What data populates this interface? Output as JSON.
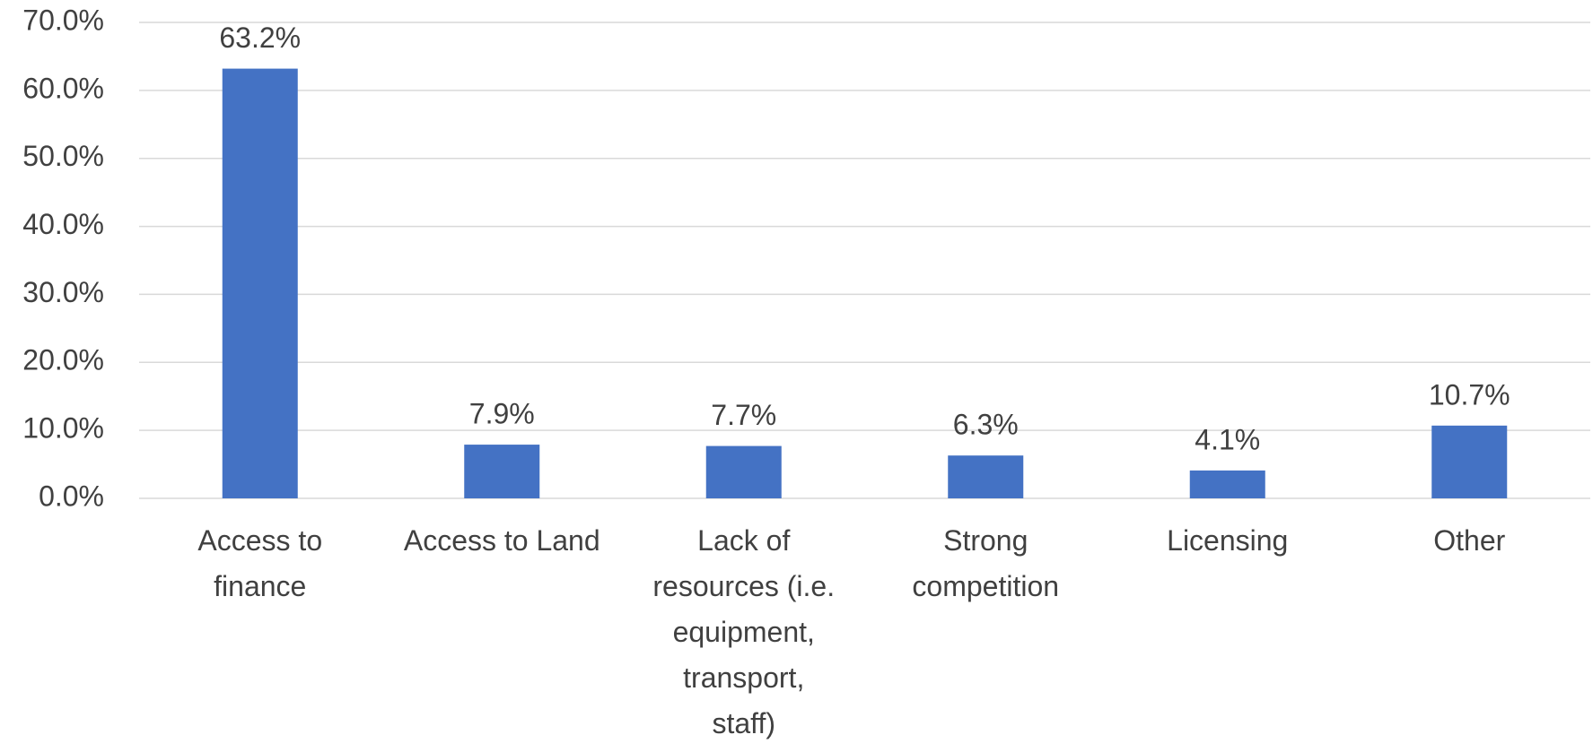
{
  "chart_data": {
    "type": "bar",
    "categories": [
      "Access to\nfinance",
      "Access to Land",
      "Lack of\nresources (i.e.\nequipment,\ntransport,\nstaff)",
      "Strong\ncompetition",
      "Licensing",
      "Other"
    ],
    "values": [
      63.2,
      7.9,
      7.7,
      6.3,
      4.1,
      10.7
    ],
    "value_labels": [
      "63.2%",
      "7.9%",
      "7.7%",
      "6.3%",
      "4.1%",
      "10.7%"
    ],
    "color": "#4472c4",
    "ylim": [
      0,
      70
    ],
    "yticks": [
      {
        "value": 0,
        "label": "0.0%"
      },
      {
        "value": 10,
        "label": "10.0%"
      },
      {
        "value": 20,
        "label": "20.0%"
      },
      {
        "value": 30,
        "label": "30.0%"
      },
      {
        "value": 40,
        "label": "40.0%"
      },
      {
        "value": 50,
        "label": "50.0%"
      },
      {
        "value": 60,
        "label": "60.0%"
      },
      {
        "value": 70,
        "label": "70.0%"
      }
    ],
    "grid": true
  }
}
